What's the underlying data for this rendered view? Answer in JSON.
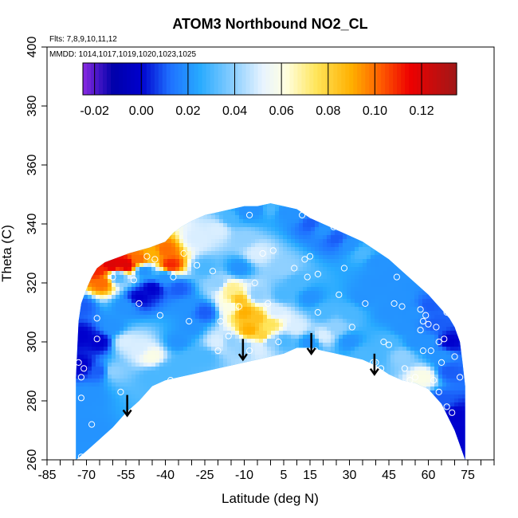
{
  "chart_data": {
    "type": "heatmap",
    "title": "ATOM3 Northbound NO2_CL",
    "annotations": [
      "Flts: 7,8,9,10,11,12",
      "MMDD: 1014,1017,1019,1020,1023,1025"
    ],
    "xlabel": "Latitude (deg N)",
    "ylabel": "Theta (C)",
    "xlim": [
      -85,
      85
    ],
    "ylim": [
      260,
      400
    ],
    "x_ticks": [
      -85,
      -70,
      -55,
      -40,
      -25,
      -10,
      5,
      15,
      30,
      45,
      60,
      75
    ],
    "x_minor_ticks": [
      -80,
      -75,
      -65,
      -60,
      -50,
      -45,
      -35,
      -30,
      -20,
      -15,
      -5,
      0,
      10,
      20,
      25,
      35,
      40,
      50,
      55,
      65,
      70,
      80,
      85
    ],
    "y_ticks": [
      260,
      280,
      300,
      320,
      340,
      360,
      380,
      400
    ],
    "colorbar": {
      "range": [
        -0.025,
        0.135
      ],
      "ticks": [
        -0.02,
        0.0,
        0.02,
        0.04,
        0.06,
        0.08,
        0.1,
        0.12
      ],
      "tick_labels": [
        "-0.02",
        "0.00",
        "0.02",
        "0.04",
        "0.06",
        "0.08",
        "0.10",
        "0.12"
      ],
      "stops": [
        {
          "v": -0.025,
          "color": "#8a2be2"
        },
        {
          "v": -0.012,
          "color": "#0000aa"
        },
        {
          "v": 0.0,
          "color": "#0000cd"
        },
        {
          "v": 0.012,
          "color": "#1e6fff"
        },
        {
          "v": 0.025,
          "color": "#27aaff"
        },
        {
          "v": 0.04,
          "color": "#8fd0ff"
        },
        {
          "v": 0.052,
          "color": "#e8f4ff"
        },
        {
          "v": 0.062,
          "color": "#ffffe0"
        },
        {
          "v": 0.075,
          "color": "#ffe55a"
        },
        {
          "v": 0.09,
          "color": "#ffb000"
        },
        {
          "v": 0.102,
          "color": "#ff6000"
        },
        {
          "v": 0.115,
          "color": "#ee0000"
        },
        {
          "v": 0.135,
          "color": "#a01818"
        }
      ]
    },
    "field_boundary": {
      "top": [
        [
          -74,
          288
        ],
        [
          -73,
          307
        ],
        [
          -72,
          313
        ],
        [
          -70,
          318
        ],
        [
          -68,
          322
        ],
        [
          -66,
          325
        ],
        [
          -63,
          327
        ],
        [
          -60,
          328
        ],
        [
          -57,
          329
        ],
        [
          -54,
          330
        ],
        [
          -50,
          331
        ],
        [
          -46,
          332
        ],
        [
          -43,
          333
        ],
        [
          -40,
          334
        ],
        [
          -37,
          337
        ],
        [
          -34,
          339
        ],
        [
          -30,
          341
        ],
        [
          -25,
          343
        ],
        [
          -20,
          344
        ],
        [
          -15,
          345
        ],
        [
          -10,
          346
        ],
        [
          -5,
          346
        ],
        [
          0,
          347
        ],
        [
          5,
          346
        ],
        [
          10,
          345
        ],
        [
          15,
          342
        ],
        [
          20,
          340
        ],
        [
          25,
          338
        ],
        [
          30,
          336
        ],
        [
          35,
          334
        ],
        [
          40,
          331
        ],
        [
          45,
          328
        ],
        [
          50,
          324
        ],
        [
          55,
          320
        ],
        [
          60,
          316
        ],
        [
          65,
          311
        ],
        [
          68,
          308
        ],
        [
          70,
          305
        ],
        [
          72,
          300
        ],
        [
          73,
          293
        ],
        [
          74,
          285
        ]
      ],
      "bottom": [
        [
          74,
          260
        ],
        [
          72,
          265
        ],
        [
          70,
          270
        ],
        [
          65,
          279
        ],
        [
          60,
          284
        ],
        [
          55,
          286
        ],
        [
          50,
          287
        ],
        [
          45,
          289
        ],
        [
          40,
          292
        ],
        [
          35,
          294
        ],
        [
          30,
          295
        ],
        [
          25,
          296
        ],
        [
          20,
          297
        ],
        [
          15,
          298
        ],
        [
          10,
          298
        ],
        [
          5,
          296
        ],
        [
          0,
          295
        ],
        [
          -5,
          294
        ],
        [
          -10,
          293
        ],
        [
          -15,
          292
        ],
        [
          -20,
          291
        ],
        [
          -25,
          290
        ],
        [
          -30,
          289
        ],
        [
          -35,
          288
        ],
        [
          -40,
          287
        ],
        [
          -45,
          285
        ],
        [
          -50,
          280
        ],
        [
          -55,
          276
        ],
        [
          -60,
          271
        ],
        [
          -65,
          267
        ],
        [
          -70,
          263
        ],
        [
          -74,
          260
        ]
      ]
    },
    "field_points": [
      [
        -72,
        302,
        0.0
      ],
      [
        -72,
        292,
        0.0
      ],
      [
        -70,
        282,
        0.02
      ],
      [
        -70,
        270,
        0.02
      ],
      [
        -72,
        312,
        0.01
      ],
      [
        -66,
        324,
        0.11
      ],
      [
        -64,
        320,
        0.1
      ],
      [
        -60,
        326,
        0.12
      ],
      [
        -58,
        322,
        0.03
      ],
      [
        -55,
        326,
        0.12
      ],
      [
        -50,
        328,
        0.1
      ],
      [
        -48,
        324,
        0.02
      ],
      [
        -45,
        330,
        0.09
      ],
      [
        -40,
        331,
        0.1
      ],
      [
        -38,
        326,
        0.11
      ],
      [
        -40,
        322,
        0.02
      ],
      [
        -35,
        318,
        0.01
      ],
      [
        -32,
        312,
        0.02
      ],
      [
        -50,
        315,
        0.0
      ],
      [
        -45,
        318,
        0.0
      ],
      [
        -55,
        312,
        0.02
      ],
      [
        -60,
        305,
        0.02
      ],
      [
        -65,
        300,
        0.0
      ],
      [
        -65,
        290,
        0.01
      ],
      [
        -60,
        290,
        0.04
      ],
      [
        -55,
        300,
        0.05
      ],
      [
        -50,
        298,
        0.05
      ],
      [
        -45,
        295,
        0.06
      ],
      [
        -45,
        288,
        0.03
      ],
      [
        -40,
        290,
        0.03
      ],
      [
        -35,
        300,
        0.02
      ],
      [
        -30,
        305,
        0.02
      ],
      [
        -25,
        310,
        0.01
      ],
      [
        -20,
        320,
        0.04
      ],
      [
        -25,
        325,
        0.03
      ],
      [
        -28,
        335,
        0.05
      ],
      [
        -20,
        338,
        0.05
      ],
      [
        -15,
        342,
        0.03
      ],
      [
        -10,
        344,
        0.02
      ],
      [
        -5,
        345,
        0.02
      ],
      [
        0,
        345,
        0.03
      ],
      [
        5,
        344,
        0.02
      ],
      [
        10,
        343,
        0.02
      ],
      [
        15,
        340,
        0.01
      ],
      [
        20,
        338,
        0.02
      ],
      [
        25,
        335,
        0.01
      ],
      [
        30,
        333,
        0.02
      ],
      [
        35,
        330,
        0.03
      ],
      [
        40,
        327,
        0.02
      ],
      [
        45,
        323,
        0.02
      ],
      [
        -10,
        335,
        0.04
      ],
      [
        -5,
        330,
        0.05
      ],
      [
        -12,
        325,
        0.02
      ],
      [
        -15,
        318,
        0.07
      ],
      [
        -12,
        314,
        0.085
      ],
      [
        -10,
        310,
        0.09
      ],
      [
        -5,
        308,
        0.085
      ],
      [
        0,
        306,
        0.075
      ],
      [
        -3,
        302,
        0.08
      ],
      [
        -8,
        304,
        0.09
      ],
      [
        -15,
        312,
        0.06
      ],
      [
        2,
        310,
        0.05
      ],
      [
        -5,
        316,
        0.04
      ],
      [
        5,
        316,
        0.03
      ],
      [
        5,
        325,
        0.04
      ],
      [
        10,
        320,
        0.03
      ],
      [
        15,
        315,
        0.02
      ],
      [
        20,
        310,
        0.03
      ],
      [
        10,
        305,
        0.05
      ],
      [
        15,
        300,
        0.02
      ],
      [
        20,
        302,
        0.05
      ],
      [
        25,
        305,
        0.04
      ],
      [
        30,
        310,
        0.03
      ],
      [
        35,
        315,
        0.02
      ],
      [
        40,
        320,
        0.02
      ],
      [
        30,
        300,
        0.02
      ],
      [
        35,
        296,
        0.03
      ],
      [
        40,
        295,
        0.03
      ],
      [
        45,
        300,
        0.03
      ],
      [
        45,
        310,
        0.02
      ],
      [
        50,
        315,
        0.02
      ],
      [
        50,
        305,
        0.02
      ],
      [
        50,
        295,
        0.04
      ],
      [
        55,
        300,
        0.02
      ],
      [
        55,
        310,
        0.02
      ],
      [
        60,
        312,
        0.01
      ],
      [
        58,
        288,
        0.06
      ],
      [
        60,
        300,
        0.02
      ],
      [
        63,
        306,
        0.01
      ],
      [
        65,
        295,
        0.02
      ],
      [
        68,
        300,
        0.0
      ],
      [
        68,
        290,
        0.01
      ],
      [
        65,
        280,
        0.01
      ],
      [
        70,
        275,
        0.0
      ],
      [
        72,
        268,
        0.0
      ],
      [
        -20,
        300,
        0.05
      ],
      [
        -15,
        300,
        0.04
      ],
      [
        -25,
        295,
        0.03
      ],
      [
        -30,
        295,
        0.03
      ],
      [
        -35,
        292,
        0.03
      ],
      [
        -10,
        298,
        0.04
      ],
      [
        -5,
        298,
        0.05
      ],
      [
        0,
        300,
        0.04
      ],
      [
        5,
        300,
        0.03
      ],
      [
        60,
        322,
        0.02
      ]
    ],
    "sample_points": [
      [
        -72,
        288
      ],
      [
        -73,
        293
      ],
      [
        -72,
        281
      ],
      [
        -71,
        291
      ],
      [
        -72,
        261
      ],
      [
        -68,
        272
      ],
      [
        -66,
        301
      ],
      [
        -66,
        308
      ],
      [
        -60,
        322
      ],
      [
        -57,
        283
      ],
      [
        -52,
        321
      ],
      [
        -50,
        313
      ],
      [
        -47,
        329
      ],
      [
        -44,
        328
      ],
      [
        -42,
        309
      ],
      [
        -37,
        322
      ],
      [
        -38,
        287
      ],
      [
        -33,
        330
      ],
      [
        -31,
        307
      ],
      [
        -28,
        326
      ],
      [
        -26,
        287
      ],
      [
        -22,
        324
      ],
      [
        -20,
        297
      ],
      [
        -19,
        307
      ],
      [
        -16,
        302
      ],
      [
        -12,
        312
      ],
      [
        -8,
        343
      ],
      [
        -8,
        297
      ],
      [
        -6,
        320
      ],
      [
        -3,
        330
      ],
      [
        -1,
        313
      ],
      [
        1,
        331
      ],
      [
        3,
        300
      ],
      [
        6,
        293
      ],
      [
        9,
        325
      ],
      [
        12,
        343
      ],
      [
        13,
        328
      ],
      [
        14,
        322
      ],
      [
        15,
        329
      ],
      [
        17,
        297
      ],
      [
        18,
        323
      ],
      [
        18,
        310
      ],
      [
        21,
        295
      ],
      [
        24,
        339
      ],
      [
        26,
        316
      ],
      [
        28,
        325
      ],
      [
        31,
        305
      ],
      [
        33,
        291
      ],
      [
        36,
        313
      ],
      [
        39,
        293
      ],
      [
        40,
        293
      ],
      [
        42,
        291
      ],
      [
        43,
        300
      ],
      [
        45,
        299
      ],
      [
        47,
        313
      ],
      [
        48,
        322
      ],
      [
        50,
        312
      ],
      [
        51,
        291
      ],
      [
        53,
        287
      ],
      [
        55,
        288
      ],
      [
        57,
        311
      ],
      [
        57,
        304
      ],
      [
        58,
        297
      ],
      [
        58,
        307
      ],
      [
        59,
        309
      ],
      [
        60,
        306
      ],
      [
        61,
        297
      ],
      [
        62,
        287
      ],
      [
        63,
        305
      ],
      [
        64,
        300
      ],
      [
        64,
        283
      ],
      [
        65,
        293
      ],
      [
        66,
        313
      ],
      [
        66,
        301
      ],
      [
        67,
        278
      ],
      [
        67,
        310
      ],
      [
        69,
        276
      ],
      [
        70,
        295
      ],
      [
        72,
        288
      ]
    ],
    "arrows": [
      {
        "lat": -54.5,
        "theta_top": 282,
        "theta_bottom": 275
      },
      {
        "lat": -10.5,
        "theta_top": 301,
        "theta_bottom": 294
      },
      {
        "lat": 15.5,
        "theta_top": 303,
        "theta_bottom": 296
      },
      {
        "lat": 39.5,
        "theta_top": 296,
        "theta_bottom": 289
      }
    ]
  }
}
